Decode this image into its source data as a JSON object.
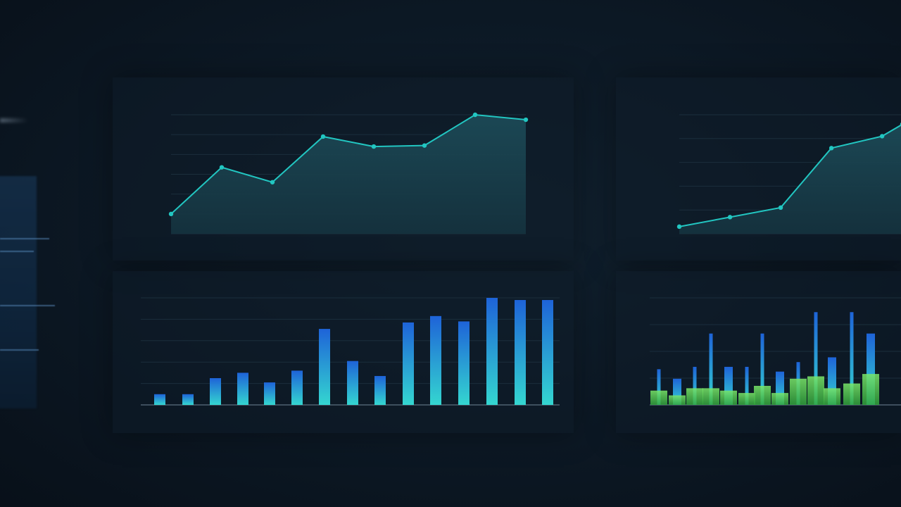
{
  "colors": {
    "line": "#22c6c1",
    "area_top": "#1c4a57",
    "area_bottom": "#15333f",
    "bar_top": "#1e63d8",
    "bar_bottom": "#34d6d0",
    "green": "#58d34a"
  },
  "chart_data": [
    {
      "id": "chart-1",
      "type": "area",
      "title": "",
      "xlabel": "",
      "ylabel": "",
      "y_tick_labels": [
        "",
        "",
        "",
        "",
        "",
        "",
        ""
      ],
      "x_tick_labels": [
        "",
        "",
        "",
        "",
        "",
        "",
        "",
        ""
      ],
      "ylim": [
        0,
        6
      ],
      "grid": true,
      "points": [
        {
          "x": 0,
          "y": 1.0
        },
        {
          "x": 1,
          "y": 3.35
        },
        {
          "x": 2,
          "y": 2.6
        },
        {
          "x": 3,
          "y": 4.9
        },
        {
          "x": 4,
          "y": 4.4
        },
        {
          "x": 5,
          "y": 4.45
        },
        {
          "x": 6,
          "y": 6.0
        },
        {
          "x": 7,
          "y": 5.75
        }
      ]
    },
    {
      "id": "chart-2",
      "type": "area",
      "title": "",
      "xlabel": "",
      "ylabel": "",
      "y_tick_labels": [
        "",
        "",
        "",
        "",
        "",
        ""
      ],
      "x_tick_labels": [
        "",
        "",
        "",
        "",
        ""
      ],
      "ylim": [
        0,
        5
      ],
      "grid": true,
      "points": [
        {
          "x": 0,
          "y": 0.3
        },
        {
          "x": 1,
          "y": 0.7
        },
        {
          "x": 2,
          "y": 1.1
        },
        {
          "x": 3,
          "y": 3.6
        },
        {
          "x": 4,
          "y": 4.1
        },
        {
          "x": 4.4,
          "y": 4.6
        }
      ]
    },
    {
      "id": "chart-3",
      "type": "bar",
      "title": "",
      "xlabel": "",
      "ylabel": "",
      "y_tick_labels": [
        "",
        "",
        "",
        "",
        "",
        ""
      ],
      "x_tick_labels": [
        "",
        "",
        "",
        "",
        "",
        "",
        "",
        ""
      ],
      "ylim": [
        0,
        5
      ],
      "grid": true,
      "values": [
        0.5,
        0.5,
        1.25,
        1.5,
        1.05,
        1.6,
        3.55,
        2.05,
        1.35,
        3.85,
        4.15,
        3.9,
        5.0,
        4.9,
        4.9
      ]
    },
    {
      "id": "chart-4",
      "type": "bar",
      "title": "",
      "xlabel": "",
      "ylabel": "",
      "y_tick_labels": [
        "",
        "",
        "",
        "",
        ""
      ],
      "x_tick_labels": [
        "",
        "",
        "",
        "",
        ""
      ],
      "ylim": [
        0,
        4.5
      ],
      "grid": true,
      "series": [
        {
          "values": [
            1.5,
            1.1,
            1.6,
            3.0,
            1.6,
            1.6,
            3.0,
            1.4,
            1.8,
            3.9,
            2.0,
            3.9,
            3.0
          ]
        },
        {
          "values": [
            0.6,
            0.4,
            0.7,
            0.7,
            0.6,
            0.5,
            0.8,
            0.5,
            1.1,
            1.2,
            0.7,
            0.9,
            1.3
          ]
        }
      ]
    }
  ]
}
